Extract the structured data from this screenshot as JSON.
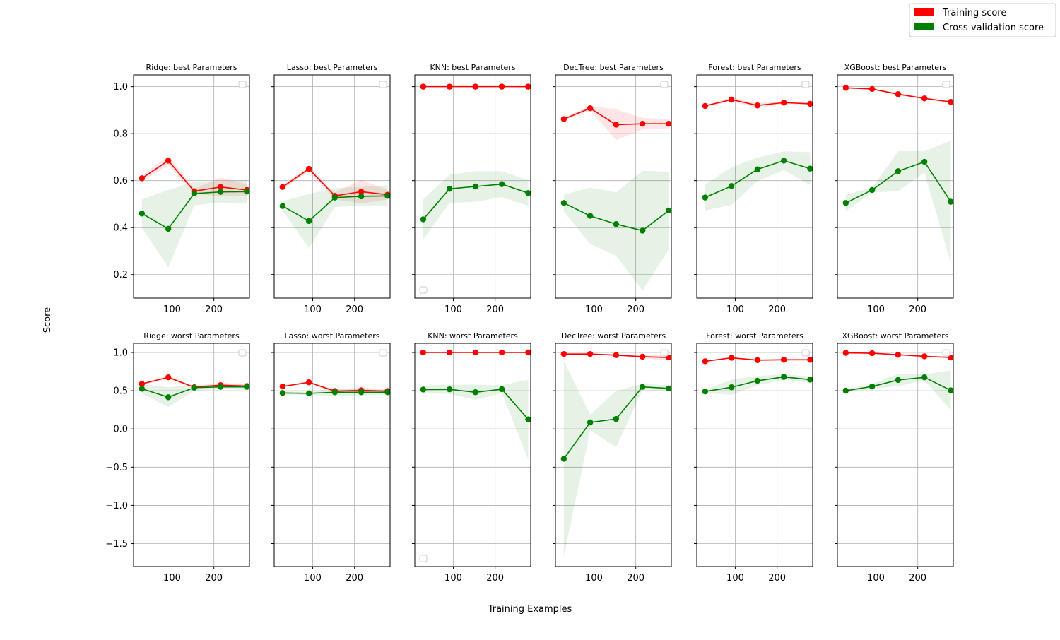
{
  "chart_data": {
    "type": "line",
    "layout": "grid-2x6",
    "xlabel": "Training Examples",
    "ylabel": "Score",
    "legend": {
      "position": "top-right",
      "entries": [
        {
          "label": "Training score",
          "color": "#ff0000"
        },
        {
          "label": "Cross-validation score",
          "color": "#008000"
        }
      ]
    },
    "colors": {
      "train": "#ff0000",
      "cv": "#008000"
    },
    "x": [
      28,
      91,
      153,
      216,
      279
    ],
    "xlim": [
      8,
      285
    ],
    "xticks": [
      100,
      200
    ],
    "rows": [
      {
        "ylim": [
          0.1,
          1.05
        ],
        "yticks": [
          0.2,
          0.4,
          0.6,
          0.8,
          1.0
        ],
        "ytick_labels": [
          "0.2",
          "0.4",
          "0.6",
          "0.8",
          "1.0"
        ],
        "panels": [
          {
            "title": "Ridge: best Parameters",
            "empty_legend": "upper-right",
            "train": [
              0.61,
              0.685,
              0.555,
              0.573,
              0.56
            ],
            "train_std": [
              0.012,
              0.02,
              0.01,
              0.04,
              0.025
            ],
            "cv": [
              0.46,
              0.395,
              0.545,
              0.552,
              0.553
            ],
            "cv_std": [
              0.06,
              0.165,
              0.05,
              0.045,
              0.05
            ]
          },
          {
            "title": "Lasso: best Parameters",
            "empty_legend": "upper-right",
            "train": [
              0.573,
              0.65,
              0.535,
              0.553,
              0.54
            ],
            "train_std": [
              0.01,
              0.01,
              0.015,
              0.05,
              0.02
            ],
            "cv": [
              0.492,
              0.428,
              0.528,
              0.533,
              0.535
            ],
            "cv_std": [
              0.02,
              0.115,
              0.04,
              0.04,
              0.045
            ]
          },
          {
            "title": "KNN: best Parameters",
            "empty_legend": "lower-left",
            "train": [
              1.0,
              1.0,
              1.0,
              1.0,
              1.0
            ],
            "train_std": [
              0,
              0,
              0,
              0,
              0
            ],
            "cv": [
              0.435,
              0.565,
              0.575,
              0.585,
              0.547
            ],
            "cv_std": [
              0.085,
              0.06,
              0.065,
              0.055,
              0.055
            ]
          },
          {
            "title": "DecTree: best Parameters",
            "empty_legend": "upper-right",
            "train": [
              0.862,
              0.908,
              0.838,
              0.842,
              0.842
            ],
            "train_std": [
              0.005,
              0.01,
              0.065,
              0.025,
              0.02
            ],
            "cv": [
              0.505,
              0.45,
              0.415,
              0.387,
              0.473
            ],
            "cv_std": [
              0.035,
              0.12,
              0.135,
              0.255,
              0.165
            ]
          },
          {
            "title": "Forest: best Parameters",
            "empty_legend": "upper-right",
            "train": [
              0.918,
              0.945,
              0.92,
              0.932,
              0.927
            ],
            "train_std": [
              0.005,
              0.008,
              0.01,
              0.005,
              0.005
            ],
            "cv": [
              0.528,
              0.577,
              0.648,
              0.685,
              0.651
            ],
            "cv_std": [
              0.055,
              0.08,
              0.05,
              0.04,
              0.07
            ]
          },
          {
            "title": "XGBoost: best Parameters",
            "empty_legend": "upper-right",
            "train": [
              0.995,
              0.99,
              0.968,
              0.95,
              0.935
            ],
            "train_std": [
              0.003,
              0.003,
              0.005,
              0.005,
              0.005
            ],
            "cv": [
              0.505,
              0.56,
              0.64,
              0.68,
              0.51
            ],
            "cv_std": [
              0.035,
              0.01,
              0.085,
              0.045,
              0.26
            ]
          }
        ]
      },
      {
        "ylim": [
          -1.8,
          1.12
        ],
        "yticks": [
          -1.5,
          -1.0,
          -0.5,
          0.0,
          0.5,
          1.0
        ],
        "ytick_labels": [
          "−1.5",
          "−1.0",
          "−0.5",
          "0.0",
          "0.5",
          "1.0"
        ],
        "panels": [
          {
            "title": "Ridge: worst Parameters",
            "empty_legend": "upper-right",
            "train": [
              0.59,
              0.675,
              0.545,
              0.573,
              0.56
            ],
            "train_std": [
              0.012,
              0.02,
              0.01,
              0.03,
              0.02
            ],
            "cv": [
              0.525,
              0.415,
              0.54,
              0.55,
              0.55
            ],
            "cv_std": [
              0.06,
              0.13,
              0.04,
              0.03,
              0.04
            ]
          },
          {
            "title": "Lasso: worst Parameters",
            "empty_legend": "upper-right",
            "train": [
              0.555,
              0.61,
              0.495,
              0.505,
              0.495
            ],
            "train_std": [
              0.01,
              0.01,
              0.02,
              0.04,
              0.02
            ],
            "cv": [
              0.47,
              0.465,
              0.48,
              0.48,
              0.48
            ],
            "cv_std": [
              0.02,
              0.02,
              0.05,
              0.04,
              0.03
            ]
          },
          {
            "title": "KNN: worst Parameters",
            "empty_legend": "lower-left",
            "train": [
              1.0,
              1.0,
              1.0,
              1.0,
              1.0
            ],
            "train_std": [
              0,
              0,
              0,
              0,
              0
            ],
            "cv": [
              0.515,
              0.518,
              0.48,
              0.52,
              0.125
            ],
            "cv_std": [
              0.05,
              0.06,
              0.1,
              0.05,
              0.52
            ]
          },
          {
            "title": "DecTree: worst Parameters",
            "empty_legend": "upper-right",
            "train": [
              0.98,
              0.98,
              0.965,
              0.945,
              0.935
            ],
            "train_std": [
              0.01,
              0.01,
              0.01,
              0.02,
              0.04
            ],
            "cv": [
              -0.39,
              0.085,
              0.13,
              0.55,
              0.53
            ],
            "cv_std": [
              1.28,
              0.1,
              0.37,
              0.04,
              0.04
            ]
          },
          {
            "title": "Forest: worst Parameters",
            "empty_legend": "upper-right",
            "train": [
              0.885,
              0.93,
              0.9,
              0.905,
              0.905
            ],
            "train_std": [
              0.005,
              0.008,
              0.01,
              0.01,
              0.01
            ],
            "cv": [
              0.49,
              0.545,
              0.63,
              0.68,
              0.645
            ],
            "cv_std": [
              0.02,
              0.1,
              0.06,
              0.035,
              0.04
            ]
          },
          {
            "title": "XGBoost: worst Parameters",
            "empty_legend": "upper-right",
            "train": [
              0.995,
              0.99,
              0.97,
              0.95,
              0.935
            ],
            "train_std": [
              0.003,
              0.003,
              0.005,
              0.005,
              0.005
            ],
            "cv": [
              0.5,
              0.555,
              0.64,
              0.675,
              0.505
            ],
            "cv_std": [
              0.02,
              0.03,
              0.08,
              0.04,
              0.26
            ]
          }
        ]
      }
    ]
  }
}
